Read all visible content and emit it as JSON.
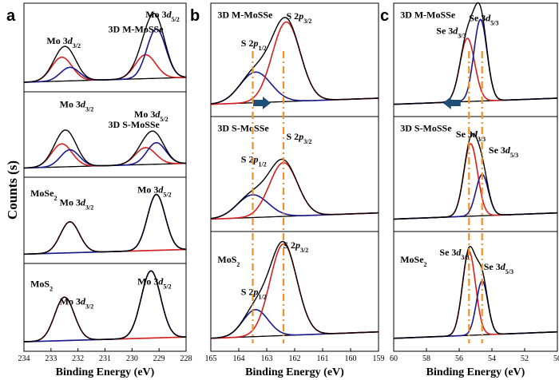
{
  "ylabel": "Counts (s)",
  "chart_data": [
    {
      "type": "line",
      "panel": "a",
      "xlabel": "Binding Energy (eV)",
      "xlim": [
        234,
        228
      ],
      "xticks": [
        234,
        233,
        232,
        231,
        230,
        229,
        228
      ],
      "subplots": [
        {
          "sample": "3D M-MoSSe",
          "peaks": [
            {
              "name": "Mo 3d3/2",
              "x": 232.5,
              "label": [
                {
                  "t": "Mo 3",
                  "s": ""
                },
                {
                  "t": "d",
                  "s": "i"
                },
                {
                  "t": "3/2",
                  "s": "sub"
                }
              ]
            },
            {
              "name": "Mo 3d5/2",
              "x": 229.2,
              "label": [
                {
                  "t": "Mo 3",
                  "s": ""
                },
                {
                  "t": "d",
                  "s": "i"
                },
                {
                  "t": "5/2",
                  "s": "sub"
                }
              ]
            }
          ],
          "components": [
            {
              "color": "#d62020",
              "centers": [
                232.6,
                229.5
              ],
              "heights": [
                0.3,
                0.3
              ],
              "widths": [
                0.38,
                0.38
              ]
            },
            {
              "color": "#1a1a8c",
              "centers": [
                232.3,
                229.1
              ],
              "heights": [
                0.17,
                0.62
              ],
              "widths": [
                0.35,
                0.35
              ]
            }
          ]
        },
        {
          "sample": "3D S-MoSSe",
          "peaks": [
            {
              "name": "Mo 3d3/2",
              "x": 232.5,
              "label": [
                {
                  "t": "Mo 3",
                  "s": ""
                },
                {
                  "t": "d",
                  "s": "i"
                },
                {
                  "t": "3/2",
                  "s": "sub"
                }
              ]
            },
            {
              "name": "Mo 3d5/2",
              "x": 229.2,
              "label": [
                {
                  "t": "Mo 3",
                  "s": ""
                },
                {
                  "t": "d",
                  "s": "i"
                },
                {
                  "t": "5/2",
                  "s": "sub"
                }
              ]
            }
          ],
          "components": [
            {
              "color": "#d62020",
              "centers": [
                232.6,
                229.5
              ],
              "heights": [
                0.3,
                0.22
              ],
              "widths": [
                0.38,
                0.38
              ]
            },
            {
              "color": "#1a1a8c",
              "centers": [
                232.3,
                229.1
              ],
              "heights": [
                0.22,
                0.28
              ],
              "widths": [
                0.35,
                0.35
              ]
            }
          ]
        },
        {
          "sample": "MoSe2",
          "peaks": [
            {
              "name": "Mo 3d3/2",
              "x": 232.3,
              "label": [
                {
                  "t": "Mo 3",
                  "s": ""
                },
                {
                  "t": "d",
                  "s": "i"
                },
                {
                  "t": "3/2",
                  "s": "sub"
                }
              ]
            },
            {
              "name": "Mo 3d5/2",
              "x": 229.1,
              "label": [
                {
                  "t": "Mo 3",
                  "s": ""
                },
                {
                  "t": "d",
                  "s": "i"
                },
                {
                  "t": "5/2",
                  "s": "sub"
                }
              ]
            }
          ],
          "components": [
            {
              "color": "#d62020",
              "centers": [
                232.3
              ],
              "heights": [
                0.4
              ],
              "widths": [
                0.35
              ]
            },
            {
              "color": "#1a1a8c",
              "centers": [
                229.1
              ],
              "heights": [
                0.72
              ],
              "widths": [
                0.33
              ]
            }
          ]
        },
        {
          "sample": "MoS2",
          "peaks": [
            {
              "name": "Mo 3d3/2",
              "x": 232.5,
              "label": [
                {
                  "t": "Mo 3",
                  "s": ""
                },
                {
                  "t": "d",
                  "s": "i"
                },
                {
                  "t": "3/2",
                  "s": "sub"
                }
              ]
            },
            {
              "name": "Mo 3d5/2",
              "x": 229.3,
              "label": [
                {
                  "t": "Mo 3",
                  "s": ""
                },
                {
                  "t": "d",
                  "s": "i"
                },
                {
                  "t": "5/2",
                  "s": "sub"
                }
              ]
            }
          ],
          "components": [
            {
              "color": "#d62020",
              "centers": [
                232.5
              ],
              "heights": [
                0.55
              ],
              "widths": [
                0.36
              ]
            },
            {
              "color": "#1a1a8c",
              "centers": [
                229.3
              ],
              "heights": [
                0.85
              ],
              "widths": [
                0.36
              ]
            }
          ]
        }
      ]
    },
    {
      "type": "line",
      "panel": "b",
      "xlabel": "Binding Energy (eV)",
      "xlim": [
        165,
        159
      ],
      "xticks": [
        165,
        164,
        163,
        162,
        161,
        160,
        159
      ],
      "dashed_lines": [
        163.5,
        162.4
      ],
      "subplots": [
        {
          "sample": "3D M-MoSSe",
          "peaks": [
            {
              "name": "S 2p1/2",
              "x": 163.4,
              "label": [
                {
                  "t": "S 2",
                  "s": ""
                },
                {
                  "t": "p",
                  "s": "i"
                },
                {
                  "t": "1/2",
                  "s": "sub"
                }
              ]
            },
            {
              "name": "S 2p3/2",
              "x": 162.2,
              "label": [
                {
                  "t": "S 2",
                  "s": ""
                },
                {
                  "t": "p",
                  "s": "i"
                },
                {
                  "t": "3/2",
                  "s": "sub"
                }
              ]
            }
          ],
          "components": [
            {
              "color": "#1a1a8c",
              "centers": [
                163.4
              ],
              "heights": [
                0.3
              ],
              "widths": [
                0.55
              ]
            },
            {
              "color": "#d62020",
              "centers": [
                162.3
              ],
              "heights": [
                0.78
              ],
              "widths": [
                0.5
              ]
            }
          ],
          "arrow": "right"
        },
        {
          "sample": "3D S-MoSSe",
          "peaks": [
            {
              "name": "S 2p1/2",
              "x": 163.5,
              "label": [
                {
                  "t": "S 2",
                  "s": ""
                },
                {
                  "t": "p",
                  "s": "i"
                },
                {
                  "t": "1/2",
                  "s": "sub"
                }
              ]
            },
            {
              "name": "S 2p3/2",
              "x": 162.3,
              "label": [
                {
                  "t": "S 2",
                  "s": ""
                },
                {
                  "t": "p",
                  "s": "i"
                },
                {
                  "t": "3/2",
                  "s": "sub"
                }
              ]
            }
          ],
          "components": [
            {
              "color": "#1a1a8c",
              "centers": [
                163.5
              ],
              "heights": [
                0.22
              ],
              "widths": [
                0.55
              ]
            },
            {
              "color": "#d62020",
              "centers": [
                162.4
              ],
              "heights": [
                0.52
              ],
              "widths": [
                0.5
              ]
            }
          ]
        },
        {
          "sample": "MoS2",
          "peaks": [
            {
              "name": "S 2p1/2",
              "x": 163.5,
              "label": [
                {
                  "t": "S 2",
                  "s": ""
                },
                {
                  "t": "p",
                  "s": "i"
                },
                {
                  "t": "1/2",
                  "s": "sub"
                }
              ]
            },
            {
              "name": "S 2p3/2",
              "x": 162.4,
              "label": [
                {
                  "t": "S 2",
                  "s": ""
                },
                {
                  "t": "p",
                  "s": "i"
                },
                {
                  "t": "3/2",
                  "s": "sub"
                }
              ]
            }
          ],
          "components": [
            {
              "color": "#1a1a8c",
              "centers": [
                163.4
              ],
              "heights": [
                0.25
              ],
              "widths": [
                0.45
              ]
            },
            {
              "color": "#d62020",
              "centers": [
                162.4
              ],
              "heights": [
                0.85
              ],
              "widths": [
                0.48
              ]
            }
          ]
        }
      ]
    },
    {
      "type": "line",
      "panel": "c",
      "xlabel": "Binding Energy (eV)",
      "xlim": [
        60,
        50
      ],
      "xticks": [
        60,
        58,
        56,
        54,
        52,
        50
      ],
      "dashed_lines": [
        55.4,
        54.6
      ],
      "subplots": [
        {
          "sample": "3D M-MoSSe",
          "peaks": [
            {
              "name": "Se 3d3/3",
              "x": 55.5,
              "label": [
                {
                  "t": "Se 3",
                  "s": ""
                },
                {
                  "t": "d",
                  "s": "i"
                },
                {
                  "t": "3/3",
                  "s": "sub"
                }
              ]
            },
            {
              "name": "Se 3d5/3",
              "x": 54.7,
              "label": [
                {
                  "t": "Se 3",
                  "s": ""
                },
                {
                  "t": "d",
                  "s": "i"
                },
                {
                  "t": "5/3",
                  "s": "sub"
                }
              ]
            }
          ],
          "components": [
            {
              "color": "#d62020",
              "centers": [
                55.5
              ],
              "heights": [
                0.62
              ],
              "widths": [
                0.45
              ]
            },
            {
              "color": "#1a1a8c",
              "centers": [
                54.7
              ],
              "heights": [
                0.8
              ],
              "widths": [
                0.4
              ]
            }
          ],
          "arrow": "left"
        },
        {
          "sample": "3D S-MoSSe",
          "peaks": [
            {
              "name": "Se 3d3/3",
              "x": 55.4,
              "label": [
                {
                  "t": "Se 3",
                  "s": ""
                },
                {
                  "t": "d",
                  "s": "i"
                },
                {
                  "t": "3/3",
                  "s": "sub"
                }
              ]
            },
            {
              "name": "Se 3d5/3",
              "x": 54.6,
              "label": [
                {
                  "t": "Se 3",
                  "s": ""
                },
                {
                  "t": "d",
                  "s": "i"
                },
                {
                  "t": "5/3",
                  "s": "sub"
                }
              ]
            }
          ],
          "components": [
            {
              "color": "#d62020",
              "centers": [
                55.3
              ],
              "heights": [
                0.7
              ],
              "widths": [
                0.42
              ]
            },
            {
              "color": "#1a1a8c",
              "centers": [
                54.6
              ],
              "heights": [
                0.4
              ],
              "widths": [
                0.38
              ]
            }
          ]
        },
        {
          "sample": "MoSe2",
          "peaks": [
            {
              "name": "Se 3d3/3",
              "x": 55.4,
              "label": [
                {
                  "t": "Se 3",
                  "s": ""
                },
                {
                  "t": "d",
                  "s": "i"
                },
                {
                  "t": "3/3",
                  "s": "sub"
                }
              ]
            },
            {
              "name": "Se 3d5/3",
              "x": 54.6,
              "label": [
                {
                  "t": "Se 3",
                  "s": ""
                },
                {
                  "t": "d",
                  "s": "i"
                },
                {
                  "t": "5/3",
                  "s": "sub"
                }
              ]
            }
          ],
          "components": [
            {
              "color": "#d62020",
              "centers": [
                55.4
              ],
              "heights": [
                0.78
              ],
              "widths": [
                0.4
              ]
            },
            {
              "color": "#1a1a8c",
              "centers": [
                54.6
              ],
              "heights": [
                0.5
              ],
              "widths": [
                0.35
              ]
            }
          ]
        }
      ]
    }
  ]
}
